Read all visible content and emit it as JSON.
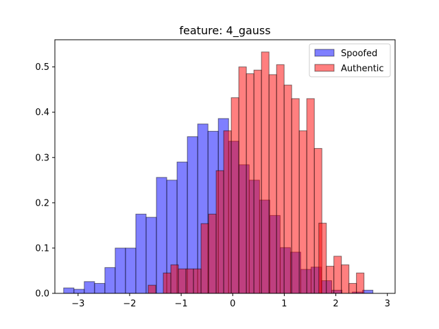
{
  "chart_data": {
    "type": "bar",
    "title": "feature: 4_gauss",
    "xlabel": "",
    "ylabel": "",
    "xlim": [
      -3.45,
      3.15
    ],
    "ylim": [
      0,
      0.56
    ],
    "x_ticks": [
      -3,
      -2,
      -1,
      0,
      1,
      2,
      3
    ],
    "x_tick_labels": [
      "−3",
      "−2",
      "−1",
      "0",
      "1",
      "2",
      "3"
    ],
    "y_ticks": [
      0.0,
      0.1,
      0.2,
      0.3,
      0.4,
      0.5
    ],
    "y_tick_labels": [
      "0.0",
      "0.1",
      "0.2",
      "0.3",
      "0.4",
      "0.5"
    ],
    "grid": false,
    "legend_position": "top-right",
    "series": [
      {
        "name": "Spoofed",
        "color": "#0000ff",
        "opacity": 0.5,
        "bin_start": -3.28,
        "bin_width": 0.2,
        "values": [
          0.012,
          0.009,
          0.026,
          0.022,
          0.057,
          0.1,
          0.1,
          0.175,
          0.168,
          0.256,
          0.25,
          0.29,
          0.346,
          0.374,
          0.358,
          0.386,
          0.336,
          0.284,
          0.25,
          0.206,
          0.172,
          0.101,
          0.091,
          0.053,
          0.058,
          0.028,
          0.007,
          0.0,
          0.003,
          0.007
        ]
      },
      {
        "name": "Authentic",
        "color": "#ff0000",
        "opacity": 0.5,
        "bin_start": -1.64,
        "bin_width": 0.1465,
        "values": [
          0.018,
          0.0,
          0.045,
          0.063,
          0.054,
          0.054,
          0.054,
          0.154,
          0.175,
          0.271,
          0.359,
          0.432,
          0.5,
          0.485,
          0.493,
          0.533,
          0.483,
          0.505,
          0.46,
          0.43,
          0.359,
          0.43,
          0.32,
          0.25,
          0.155,
          0.11,
          0.063,
          0.079,
          0.051,
          0.046,
          0.0,
          0.0,
          0.0
        ]
      }
    ],
    "authentic_extra": [
      {
        "x": 1.67,
        "v": 0.155
      },
      {
        "x": 1.816,
        "v": 0.06
      },
      {
        "x": 1.962,
        "v": 0.082
      },
      {
        "x": 2.108,
        "v": 0.063
      },
      {
        "x": 2.254,
        "v": 0.022
      },
      {
        "x": 2.4,
        "v": 0.045
      }
    ]
  }
}
